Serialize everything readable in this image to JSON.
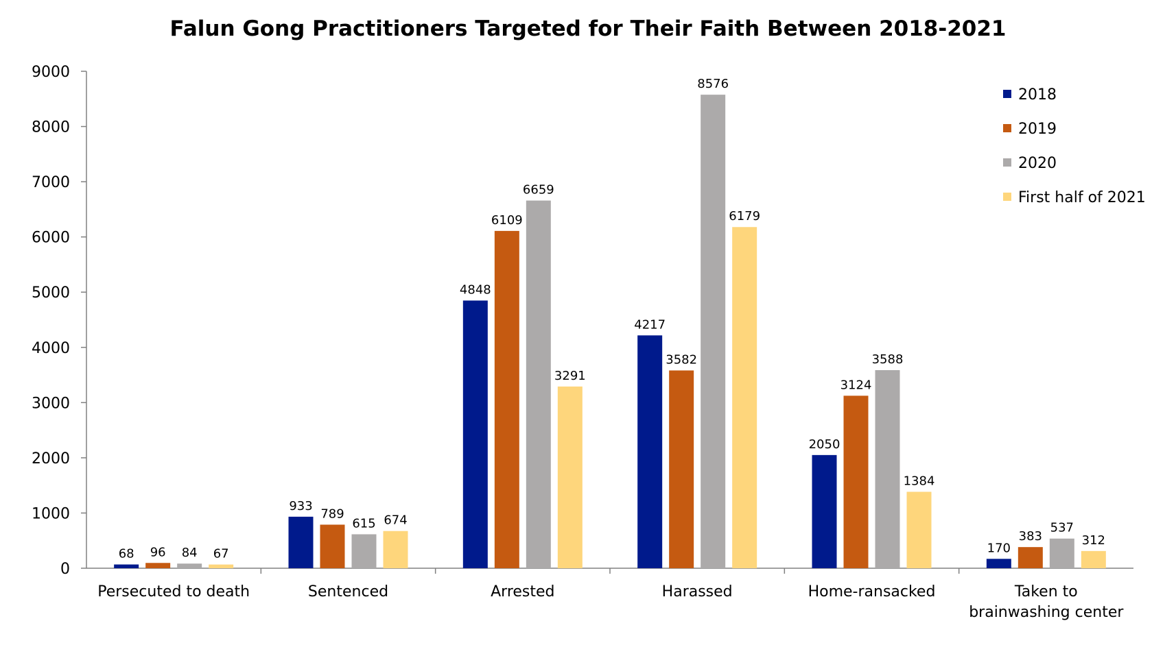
{
  "chart_data": {
    "type": "bar",
    "title": "Falun Gong Practitioners Targeted for Their Faith Between 2018-2021",
    "categories": [
      [
        "Persecuted to death"
      ],
      [
        "Sentenced"
      ],
      [
        "Arrested"
      ],
      [
        "Harassed"
      ],
      [
        "Home-ransacked"
      ],
      [
        "Taken to",
        "brainwashing center"
      ]
    ],
    "series": [
      {
        "name": "2018",
        "color": "#001a8c",
        "values": [
          68,
          933,
          4848,
          4217,
          2050,
          170
        ]
      },
      {
        "name": "2019",
        "color": "#c55a11",
        "values": [
          96,
          789,
          6109,
          3582,
          3124,
          383
        ]
      },
      {
        "name": "2020",
        "color": "#acaaaa",
        "values": [
          84,
          615,
          6659,
          8576,
          3588,
          537
        ]
      },
      {
        "name": "First half of 2021",
        "color": "#fed67c",
        "values": [
          67,
          674,
          3291,
          6179,
          1384,
          312
        ]
      }
    ],
    "ylim": [
      0,
      9000
    ],
    "yticks": [
      0,
      1000,
      2000,
      3000,
      4000,
      5000,
      6000,
      7000,
      8000,
      9000
    ],
    "xlabel": "",
    "ylabel": "",
    "grid": false,
    "legend": "top-right"
  }
}
